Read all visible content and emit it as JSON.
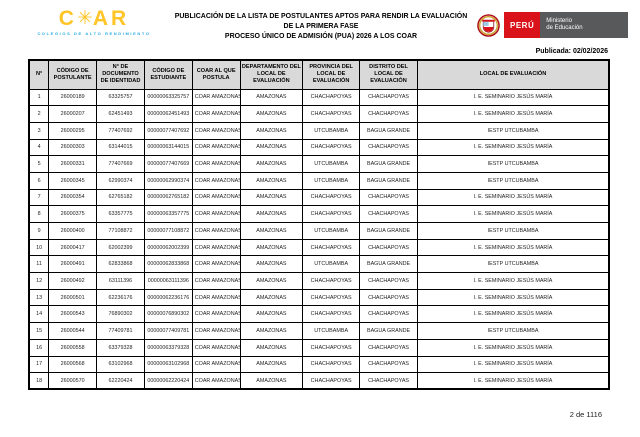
{
  "header": {
    "coar": {
      "brand_c": "C",
      "brand_ar": "AR",
      "tagline": "COLEGIOS DE ALTO RENDIMIENTO"
    },
    "title_lines": [
      "PUBLICACIÓN DE LA LISTA DE POSTULANTES APTOS PARA RENDIR LA EVALUACIÓN",
      "DE LA PRIMERA FASE",
      "PROCESO ÚNICO DE ADMISIÓN (PUA) 2026 A LOS COAR"
    ],
    "gov": {
      "country": "PERÚ",
      "ministry_line1": "Ministerio",
      "ministry_line2": "de Educación"
    },
    "published": "Publicada: 02/02/2026"
  },
  "table": {
    "columns": [
      "N°",
      "CÓDIGO DE POSTULANTE",
      "N° DE DOCUMENTO DE IDENTIDAD",
      "CÓDIGO DE ESTUDIANTE",
      "COAR AL QUE POSTULA",
      "DEPARTAMENTO DEL LOCAL DE EVALUACIÓN",
      "PROVINCIA  DEL LOCAL DE EVALUACIÓN",
      "DISTRITO  DEL LOCAL DE EVALUACIÓN",
      "LOCAL DE EVALUACIÓN"
    ],
    "rows": [
      [
        "1",
        "26000189",
        "63325757",
        "00000063325757",
        "COAR AMAZONAS",
        "AMAZONAS",
        "CHACHAPOYAS",
        "CHACHAPOYAS",
        "I. E. SEMINARIO JESÚS MARÍA"
      ],
      [
        "2",
        "26000207",
        "62451493",
        "00000062451493",
        "COAR AMAZONAS",
        "AMAZONAS",
        "CHACHAPOYAS",
        "CHACHAPOYAS",
        "I. E. SEMINARIO JESÚS MARÍA"
      ],
      [
        "3",
        "26000295",
        "77407692",
        "00000077407692",
        "COAR AMAZONAS",
        "AMAZONAS",
        "UTCUBAMBA",
        "BAGUA GRANDE",
        "IESTP UTCUBAMBA"
      ],
      [
        "4",
        "26000303",
        "63144015",
        "00000063144015",
        "COAR AMAZONAS",
        "AMAZONAS",
        "CHACHAPOYAS",
        "CHACHAPOYAS",
        "I. E. SEMINARIO JESÚS MARÍA"
      ],
      [
        "5",
        "26000331",
        "77407669",
        "00000077407669",
        "COAR AMAZONAS",
        "AMAZONAS",
        "UTCUBAMBA",
        "BAGUA GRANDE",
        "IESTP UTCUBAMBA"
      ],
      [
        "6",
        "26000345",
        "62990374",
        "00000062990374",
        "COAR AMAZONAS",
        "AMAZONAS",
        "UTCUBAMBA",
        "BAGUA GRANDE",
        "IESTP UTCUBAMBA"
      ],
      [
        "7",
        "26000354",
        "62765182",
        "00000062765182",
        "COAR AMAZONAS",
        "AMAZONAS",
        "CHACHAPOYAS",
        "CHACHAPOYAS",
        "I. E. SEMINARIO JESÚS MARÍA"
      ],
      [
        "8",
        "26000375",
        "63357775",
        "00000063357775",
        "COAR AMAZONAS",
        "AMAZONAS",
        "CHACHAPOYAS",
        "CHACHAPOYAS",
        "I. E. SEMINARIO JESÚS MARÍA"
      ],
      [
        "9",
        "26000400",
        "77108872",
        "00000077108872",
        "COAR AMAZONAS",
        "AMAZONAS",
        "UTCUBAMBA",
        "BAGUA GRANDE",
        "IESTP UTCUBAMBA"
      ],
      [
        "10",
        "26000417",
        "62002399",
        "00000062002399",
        "COAR AMAZONAS",
        "AMAZONAS",
        "CHACHAPOYAS",
        "CHACHAPOYAS",
        "I. E. SEMINARIO JESÚS MARÍA"
      ],
      [
        "11",
        "26000491",
        "62833868",
        "00000062833868",
        "COAR AMAZONAS",
        "AMAZONAS",
        "UTCUBAMBA",
        "BAGUA GRANDE",
        "IESTP UTCUBAMBA"
      ],
      [
        "12",
        "26000492",
        "63111396",
        "00000063111396",
        "COAR AMAZONAS",
        "AMAZONAS",
        "CHACHAPOYAS",
        "CHACHAPOYAS",
        "I. E. SEMINARIO JESÚS MARÍA"
      ],
      [
        "13",
        "26000501",
        "62236176",
        "00000062236176",
        "COAR AMAZONAS",
        "AMAZONAS",
        "CHACHAPOYAS",
        "CHACHAPOYAS",
        "I. E. SEMINARIO JESÚS MARÍA"
      ],
      [
        "14",
        "26000543",
        "76890302",
        "00000076890302",
        "COAR AMAZONAS",
        "AMAZONAS",
        "CHACHAPOYAS",
        "CHACHAPOYAS",
        "I. E. SEMINARIO JESÚS MARÍA"
      ],
      [
        "15",
        "26000544",
        "77409781",
        "00000077409781",
        "COAR AMAZONAS",
        "AMAZONAS",
        "UTCUBAMBA",
        "BAGUA GRANDE",
        "IESTP UTCUBAMBA"
      ],
      [
        "16",
        "26000558",
        "63379328",
        "00000063379328",
        "COAR AMAZONAS",
        "AMAZONAS",
        "CHACHAPOYAS",
        "CHACHAPOYAS",
        "I. E. SEMINARIO JESÚS MARÍA"
      ],
      [
        "17",
        "26000568",
        "63102968",
        "00000063102968",
        "COAR AMAZONAS",
        "AMAZONAS",
        "CHACHAPOYAS",
        "CHACHAPOYAS",
        "I. E. SEMINARIO JESÚS MARÍA"
      ],
      [
        "18",
        "26000570",
        "62220424",
        "00000062220424",
        "COAR AMAZONAS",
        "AMAZONAS",
        "CHACHAPOYAS",
        "CHACHAPOYAS",
        "I. E. SEMINARIO JESÚS MARÍA"
      ]
    ]
  },
  "footer": {
    "page_indicator": "2 de 1116"
  },
  "colors": {
    "brand_yellow": "#FFC425",
    "tagline_blue": "#29ABE2",
    "peru_red": "#DA121A",
    "gov_gray": "#58595B",
    "table_header_gray": "#D9D9D9"
  }
}
